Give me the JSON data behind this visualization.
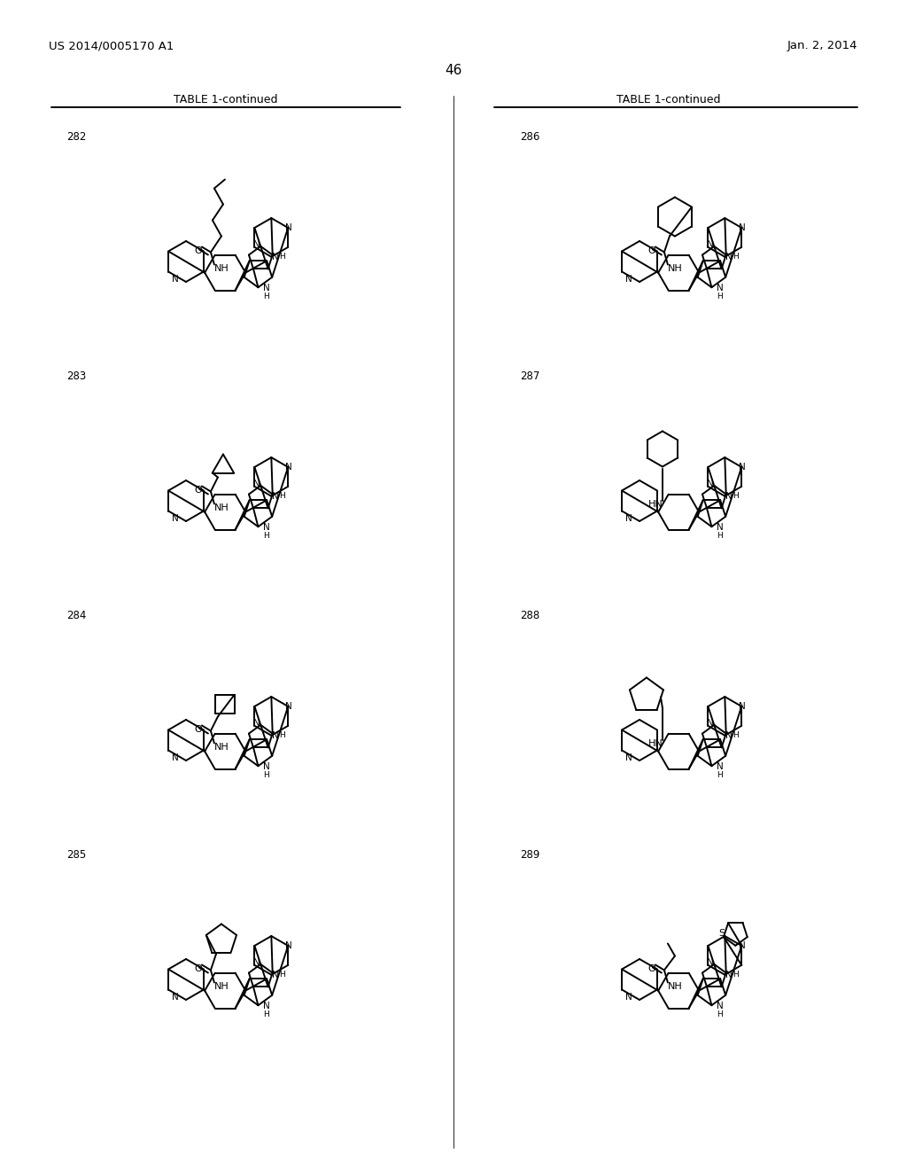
{
  "bg": "#ffffff",
  "header_left": "US 2014/0005170 A1",
  "header_right": "Jan. 2, 2014",
  "page_num": "46",
  "table_title": "TABLE 1-continued",
  "compound_ids_left": [
    "282",
    "283",
    "284",
    "285"
  ],
  "compound_ids_right": [
    "286",
    "287",
    "288",
    "289"
  ]
}
